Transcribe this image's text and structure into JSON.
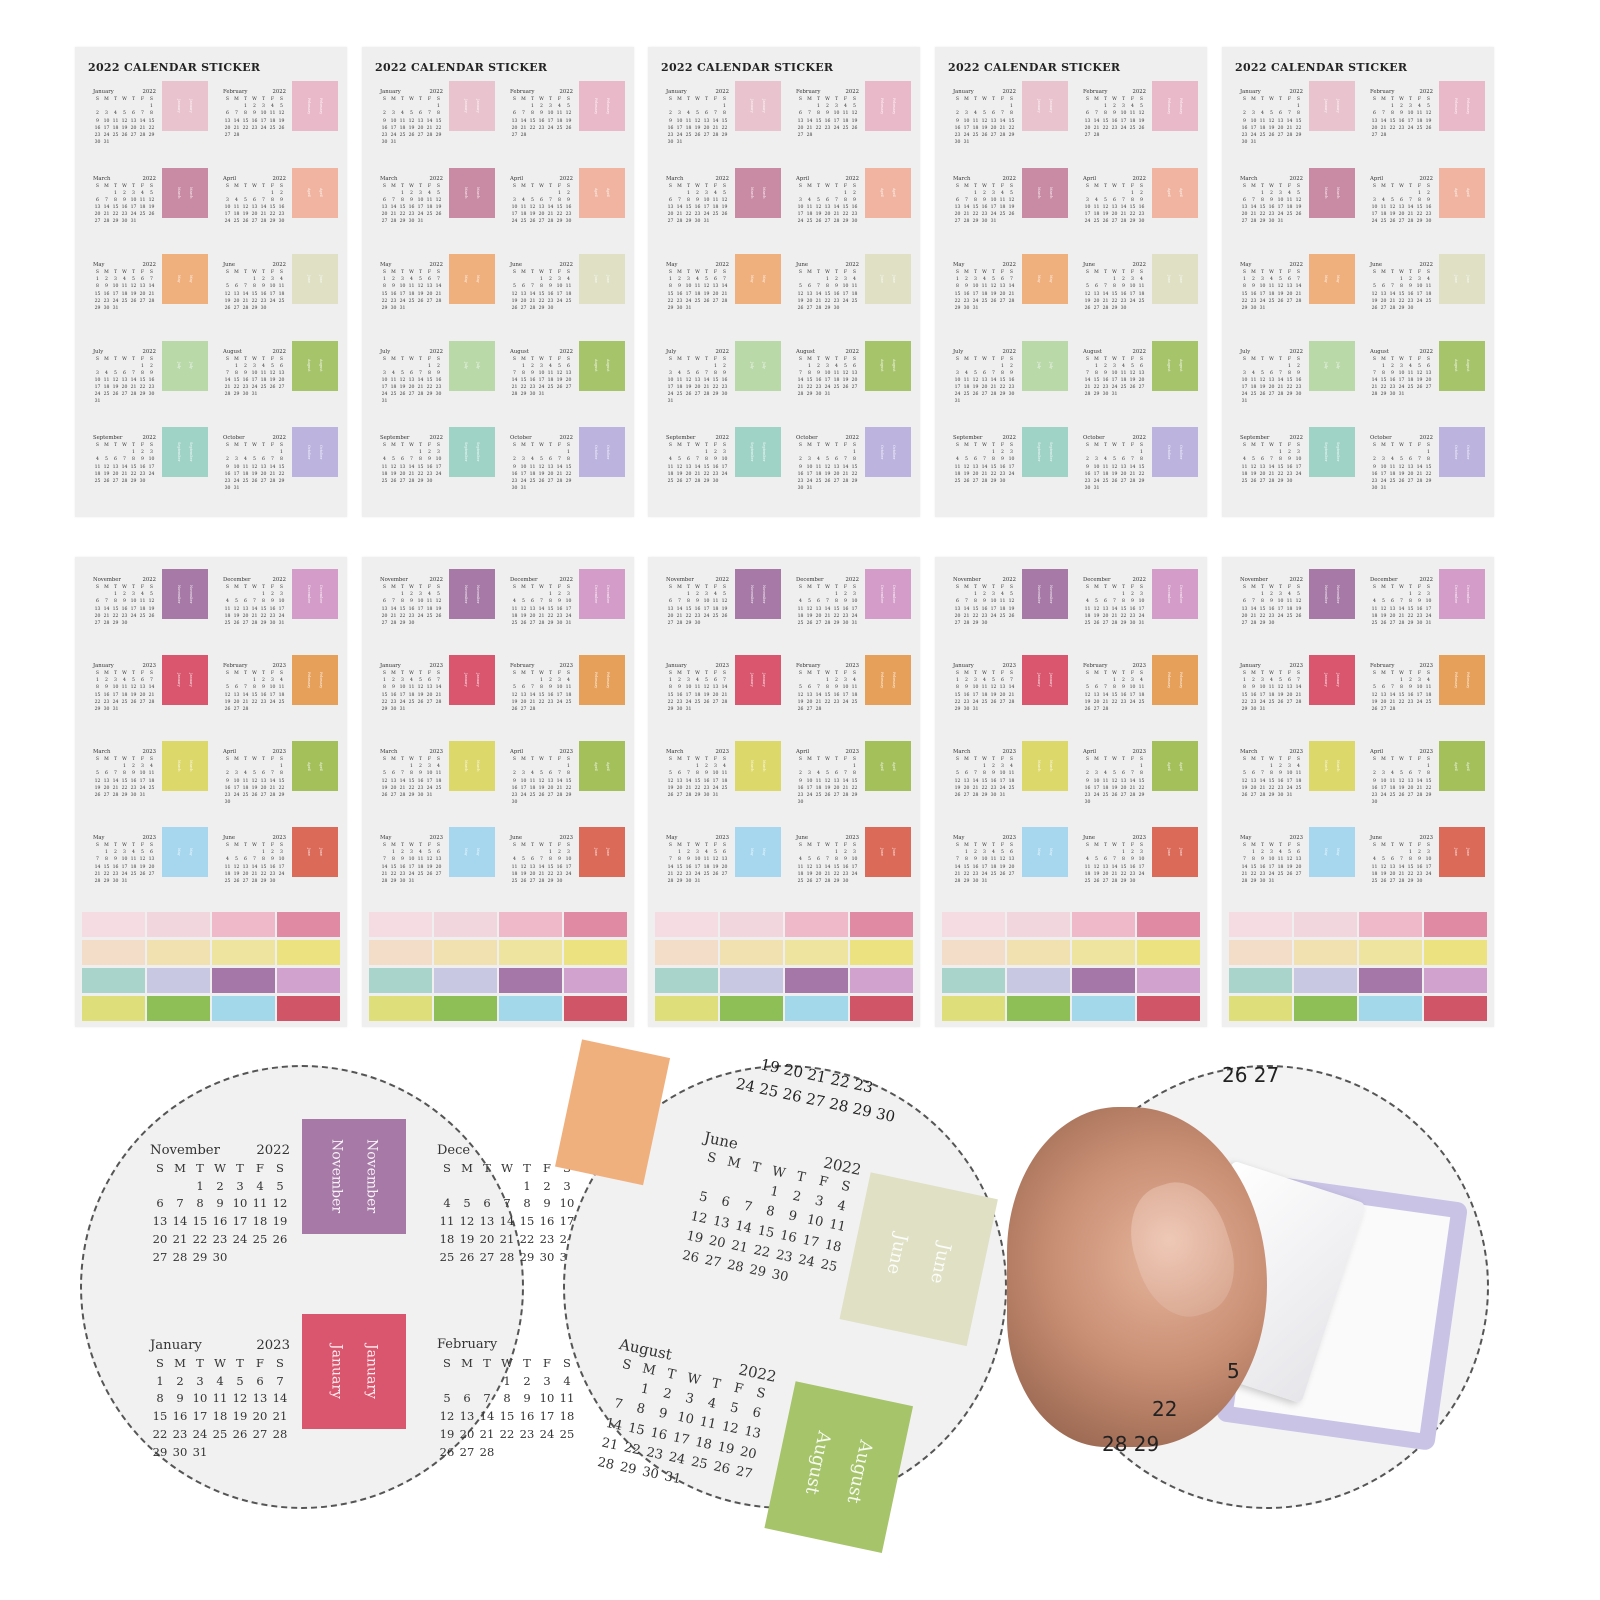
{
  "weekdays": [
    "S",
    "M",
    "T",
    "W",
    "T",
    "F",
    "S"
  ],
  "top_sheet": {
    "title": "2022 CALENDAR STICKER",
    "months": [
      {
        "name": "January",
        "year": "2022",
        "m": 0,
        "y": 2022,
        "color": "#e9c4cf"
      },
      {
        "name": "February",
        "year": "2022",
        "m": 1,
        "y": 2022,
        "color": "#eab9c9"
      },
      {
        "name": "March",
        "year": "2022",
        "m": 2,
        "y": 2022,
        "color": "#c98aa3"
      },
      {
        "name": "April",
        "year": "2022",
        "m": 3,
        "y": 2022,
        "color": "#f0b4a0"
      },
      {
        "name": "May",
        "year": "2022",
        "m": 4,
        "y": 2022,
        "color": "#f0b07e"
      },
      {
        "name": "June",
        "year": "2022",
        "m": 5,
        "y": 2022,
        "color": "#dfe0c4"
      },
      {
        "name": "July",
        "year": "2022",
        "m": 6,
        "y": 2022,
        "color": "#b9d9a9"
      },
      {
        "name": "August",
        "year": "2022",
        "m": 7,
        "y": 2022,
        "color": "#a6c46a"
      },
      {
        "name": "September",
        "year": "2022",
        "m": 8,
        "y": 2022,
        "color": "#9fd3c6"
      },
      {
        "name": "October",
        "year": "2022",
        "m": 9,
        "y": 2022,
        "color": "#bcb4df"
      }
    ]
  },
  "bottom_sheet": {
    "months": [
      {
        "name": "November",
        "year": "2022",
        "m": 10,
        "y": 2022,
        "color": "#a679a6"
      },
      {
        "name": "December",
        "year": "2022",
        "m": 11,
        "y": 2022,
        "color": "#d49cc8"
      },
      {
        "name": "January",
        "year": "2023",
        "m": 0,
        "y": 2023,
        "color": "#d9566e"
      },
      {
        "name": "February",
        "year": "2023",
        "m": 1,
        "y": 2023,
        "color": "#e6a05a"
      },
      {
        "name": "March",
        "year": "2023",
        "m": 2,
        "y": 2023,
        "color": "#ddd86a"
      },
      {
        "name": "April",
        "year": "2023",
        "m": 3,
        "y": 2023,
        "color": "#a3c05a"
      },
      {
        "name": "May",
        "year": "2023",
        "m": 4,
        "y": 2023,
        "color": "#a6d7ef"
      },
      {
        "name": "June",
        "year": "2023",
        "m": 5,
        "y": 2023,
        "color": "#dc6a58"
      }
    ],
    "strip_colors": [
      [
        "#f4dce2",
        "#f2d6de",
        "#f0b9c9",
        "#e08aa3"
      ],
      [
        "#f3dcc8",
        "#f1e0b0",
        "#efe3a0",
        "#ece27f"
      ],
      [
        "#a8d4cc",
        "#c8c8e3",
        "#a577a8",
        "#d2a2cf"
      ],
      [
        "#dede7a",
        "#8dbf56",
        "#a3d8ea",
        "#d05566"
      ]
    ]
  },
  "sheet_count_per_row": 5,
  "detail_1": {
    "nov": {
      "name": "November",
      "year": "2022",
      "m": 10,
      "y": 2022
    },
    "jan": {
      "name": "January",
      "year": "2023",
      "m": 0,
      "y": 2023
    },
    "dec_partial": "Dece",
    "feb_partial": "February",
    "nov_tab": "November",
    "jan_tab": "January",
    "nov_color": "#a679a6",
    "jan_color": "#d9566e"
  },
  "detail_2": {
    "top_numbers": "24 25 26 27 28 29 30",
    "top_numbers_2": "19 20 21 22 23",
    "jun": {
      "name": "June",
      "year": "2022",
      "m": 5,
      "y": 2022
    },
    "aug": {
      "name": "August",
      "year": "2022",
      "m": 7,
      "y": 2022
    },
    "jun_tab": "June",
    "aug_tab": "August",
    "jun_color": "#dfe0c4",
    "aug_color": "#a6c46a"
  },
  "detail_3": {
    "n1": "26 27",
    "n2": "22",
    "n3": "28 29",
    "n4": "5",
    "frame_color": "#bcb4df"
  }
}
